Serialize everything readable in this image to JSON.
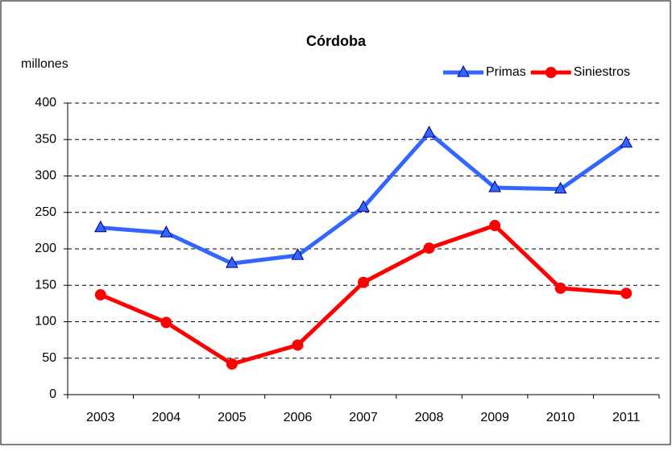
{
  "chart_data": {
    "type": "line",
    "title": "Córdoba",
    "y_label": "millones",
    "categories": [
      "2003",
      "2004",
      "2005",
      "2006",
      "2007",
      "2008",
      "2009",
      "2010",
      "2011"
    ],
    "series": [
      {
        "name": "Primas",
        "color": "#3366ff",
        "marker": "triangle",
        "values": [
          229,
          222,
          180,
          191,
          257,
          359,
          284,
          282,
          345
        ]
      },
      {
        "name": "Siniestros",
        "color": "#ff0000",
        "marker": "circle",
        "values": [
          137,
          99,
          42,
          68,
          154,
          201,
          232,
          146,
          139
        ]
      }
    ],
    "ylim": [
      0,
      400
    ],
    "yticks": [
      0,
      50,
      100,
      150,
      200,
      250,
      300,
      350,
      400
    ],
    "grid": true,
    "legend": "top-right"
  }
}
